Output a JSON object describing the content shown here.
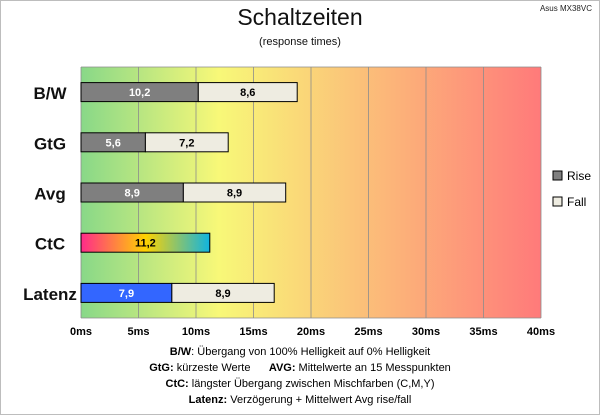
{
  "model": "Asus MX38VC",
  "chart_data": {
    "type": "bar",
    "stacked": true,
    "orientation": "horizontal",
    "title": "Schaltzeiten",
    "subtitle": "(response times)",
    "categories": [
      "B/W",
      "GtG",
      "Avg",
      "CtC",
      "Latenz"
    ],
    "series": [
      {
        "name": "Rise",
        "values": [
          10.2,
          5.6,
          8.9,
          null,
          null
        ]
      },
      {
        "name": "Fall",
        "values": [
          8.6,
          7.2,
          8.9,
          null,
          8.9
        ]
      },
      {
        "name": "",
        "values": [
          null,
          null,
          null,
          11.2,
          null
        ]
      },
      {
        "name": "",
        "values": [
          null,
          null,
          null,
          null,
          7.9
        ]
      }
    ],
    "value_labels": [
      [
        "10,2",
        "8,6"
      ],
      [
        "5,6",
        "7,2"
      ],
      [
        "8,9",
        "8,9"
      ],
      [
        "11,2"
      ],
      [
        "7,9",
        "8,9"
      ]
    ],
    "x_ticks": [
      "0ms",
      "5ms",
      "10ms",
      "15ms",
      "20ms",
      "25ms",
      "30ms",
      "35ms",
      "40ms"
    ],
    "xlim": [
      0,
      40
    ],
    "grid": true,
    "legend_position": "right",
    "colors": {
      "rise": "#7f7f7f",
      "fall": "#eeece1",
      "latenz": "#3366ff",
      "bar_border": "#000000",
      "background_gradient": [
        "#88d888",
        "#f8f878",
        "#ff7a7a"
      ],
      "ctc_gradient": [
        "#ff2a8a",
        "#ffd200",
        "#10b4e0"
      ]
    }
  },
  "footer": {
    "line1_key": "B/W",
    "line1_text": ":  Übergang von 100% Helligkeit auf 0% Helligkeit",
    "line2_key_a": "GtG:",
    "line2_text_a": " kürzeste  Werte",
    "line2_key_b": "AVG:",
    "line2_text_b": " Mittelwerte  an 15 Messpunkten",
    "line3_key": "CtC:",
    "line3_text": " längster Übergang  zwischen Mischfarben  (C,M,Y)",
    "line4_key": "Latenz:",
    "line4_text": " Verzögerung  + Mittelwert  Avg rise/fall"
  }
}
